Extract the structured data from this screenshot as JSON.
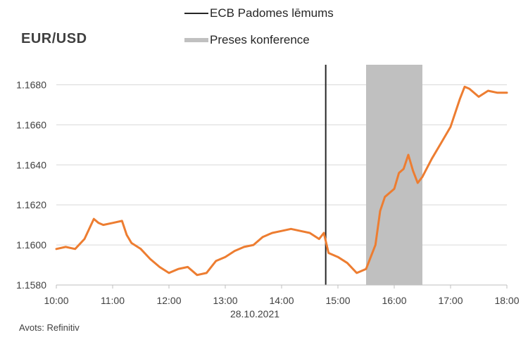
{
  "title": "EUR/USD",
  "source": "Avots: Refinitiv",
  "legend": [
    {
      "label": "ECB Padomes lēmums",
      "kind": "line",
      "color": "#262626"
    },
    {
      "label": "Preses konference",
      "kind": "band",
      "color": "#c0c0c0"
    }
  ],
  "chart_data": {
    "type": "line",
    "title": "EUR/USD",
    "xlabel": "28.10.2021",
    "ylabel": "",
    "x_ticks": [
      "10:00",
      "11:00",
      "12:00",
      "13:00",
      "14:00",
      "15:00",
      "16:00",
      "17:00",
      "18:00"
    ],
    "x_range": [
      "10:00",
      "18:00"
    ],
    "y_ticks": [
      "1.1580",
      "1.1600",
      "1.1620",
      "1.1640",
      "1.1660",
      "1.1680"
    ],
    "ylim": [
      1.158,
      1.169
    ],
    "grid": "horizontal",
    "legend_position": "top",
    "series": [
      {
        "color": "#ed7d31",
        "x": [
          "10:00",
          "10:10",
          "10:20",
          "10:30",
          "10:40",
          "10:45",
          "10:50",
          "11:00",
          "11:10",
          "11:15",
          "11:20",
          "11:30",
          "11:40",
          "11:50",
          "12:00",
          "12:10",
          "12:20",
          "12:30",
          "12:40",
          "12:50",
          "13:00",
          "13:10",
          "13:20",
          "13:30",
          "13:40",
          "13:50",
          "14:00",
          "14:10",
          "14:20",
          "14:30",
          "14:40",
          "14:45",
          "14:50",
          "15:00",
          "15:10",
          "15:20",
          "15:30",
          "15:40",
          "15:45",
          "15:50",
          "16:00",
          "16:05",
          "16:10",
          "16:15",
          "16:20",
          "16:25",
          "16:30",
          "16:40",
          "16:50",
          "17:00",
          "17:10",
          "17:15",
          "17:20",
          "17:30",
          "17:40",
          "17:50",
          "18:00"
        ],
        "values": [
          1.1598,
          1.1599,
          1.1598,
          1.1603,
          1.1613,
          1.1611,
          1.161,
          1.1611,
          1.1612,
          1.1605,
          1.1601,
          1.1598,
          1.1593,
          1.1589,
          1.1586,
          1.1588,
          1.1589,
          1.1585,
          1.1586,
          1.1592,
          1.1594,
          1.1597,
          1.1599,
          1.16,
          1.1604,
          1.1606,
          1.1607,
          1.1608,
          1.1607,
          1.1606,
          1.1603,
          1.1606,
          1.1596,
          1.1594,
          1.1591,
          1.1586,
          1.1588,
          1.16,
          1.1617,
          1.1624,
          1.1628,
          1.1636,
          1.1638,
          1.1645,
          1.1637,
          1.1631,
          1.1634,
          1.1643,
          1.1651,
          1.1659,
          1.1673,
          1.1679,
          1.1678,
          1.1674,
          1.1677,
          1.1676,
          1.1676
        ]
      }
    ],
    "annotations": [
      {
        "type": "vline",
        "x": "14:47",
        "label": "ECB Padomes lēmums"
      },
      {
        "type": "vband",
        "x_start": "15:30",
        "x_end": "16:30",
        "label": "Preses konference"
      }
    ]
  }
}
